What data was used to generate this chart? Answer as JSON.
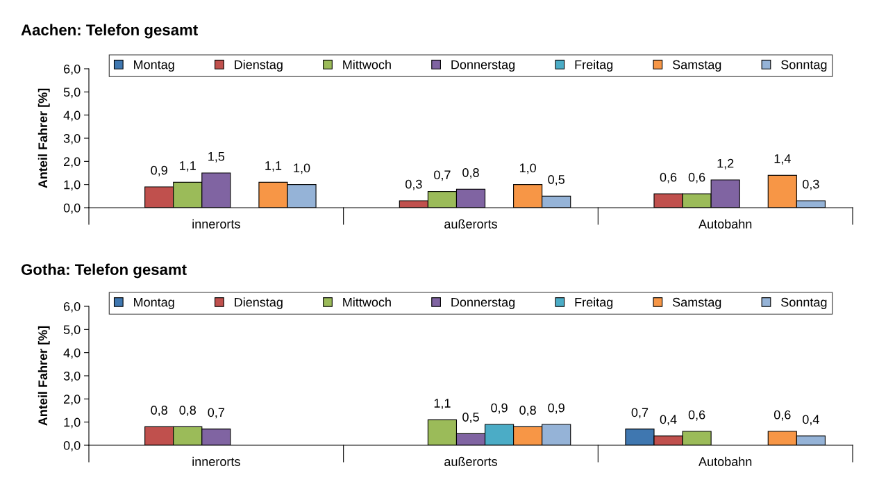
{
  "chart_data": [
    {
      "type": "bar",
      "title": "Aachen: Telefon gesamt",
      "ylabel": "Anteil Fahrer [%]",
      "categories": [
        "innerorts",
        "außerorts",
        "Autobahn"
      ],
      "ylim": [
        0,
        6
      ],
      "yticks": [
        {
          "value": 0,
          "label": "0,0"
        },
        {
          "value": 1,
          "label": "1,0"
        },
        {
          "value": 2,
          "label": "2,0"
        },
        {
          "value": 3,
          "label": "3,0"
        },
        {
          "value": 4,
          "label": "4,0"
        },
        {
          "value": 5,
          "label": "5,0"
        },
        {
          "value": 6,
          "label": "6,0"
        }
      ],
      "grid": false,
      "legend": "top",
      "series": [
        {
          "name": "Montag",
          "color": "#3f77b0",
          "values": [
            null,
            null,
            null
          ],
          "value_labels": [
            null,
            null,
            null
          ]
        },
        {
          "name": "Dienstag",
          "color": "#c0504d",
          "values": [
            0.9,
            0.3,
            0.6
          ],
          "value_labels": [
            "0,9",
            "0,3",
            "0,6"
          ]
        },
        {
          "name": "Mittwoch",
          "color": "#9bbb59",
          "values": [
            1.1,
            0.7,
            0.6
          ],
          "value_labels": [
            "1,1",
            "0,7",
            "0,6"
          ]
        },
        {
          "name": "Donnerstag",
          "color": "#8064a2",
          "values": [
            1.5,
            0.8,
            1.2
          ],
          "value_labels": [
            "1,5",
            "0,8",
            "1,2"
          ]
        },
        {
          "name": "Freitag",
          "color": "#4bacc6",
          "values": [
            null,
            null,
            null
          ],
          "value_labels": [
            null,
            null,
            null
          ]
        },
        {
          "name": "Samstag",
          "color": "#f79646",
          "values": [
            1.1,
            1.0,
            1.4
          ],
          "value_labels": [
            "1,1",
            "1,0",
            "1,4"
          ]
        },
        {
          "name": "Sonntag",
          "color": "#95b3d7",
          "values": [
            1.0,
            0.5,
            0.3
          ],
          "value_labels": [
            "1,0",
            "0,5",
            "0,3"
          ]
        }
      ]
    },
    {
      "type": "bar",
      "title": "Gotha: Telefon gesamt",
      "ylabel": "Anteil Fahrer [%]",
      "categories": [
        "innerorts",
        "außerorts",
        "Autobahn"
      ],
      "ylim": [
        0,
        6
      ],
      "yticks": [
        {
          "value": 0,
          "label": "0,0"
        },
        {
          "value": 1,
          "label": "1,0"
        },
        {
          "value": 2,
          "label": "2,0"
        },
        {
          "value": 3,
          "label": "3,0"
        },
        {
          "value": 4,
          "label": "4,0"
        },
        {
          "value": 5,
          "label": "5,0"
        },
        {
          "value": 6,
          "label": "6,0"
        }
      ],
      "grid": false,
      "legend": "top",
      "series": [
        {
          "name": "Montag",
          "color": "#3f77b0",
          "values": [
            null,
            null,
            0.7
          ],
          "value_labels": [
            null,
            null,
            "0,7"
          ]
        },
        {
          "name": "Dienstag",
          "color": "#c0504d",
          "values": [
            0.8,
            null,
            0.4
          ],
          "value_labels": [
            "0,8",
            null,
            "0,4"
          ]
        },
        {
          "name": "Mittwoch",
          "color": "#9bbb59",
          "values": [
            0.8,
            1.1,
            0.6
          ],
          "value_labels": [
            "0,8",
            "1,1",
            "0,6"
          ]
        },
        {
          "name": "Donnerstag",
          "color": "#8064a2",
          "values": [
            0.7,
            0.5,
            null
          ],
          "value_labels": [
            "0,7",
            "0,5",
            null
          ]
        },
        {
          "name": "Freitag",
          "color": "#4bacc6",
          "values": [
            null,
            0.9,
            null
          ],
          "value_labels": [
            null,
            "0,9",
            null
          ]
        },
        {
          "name": "Samstag",
          "color": "#f79646",
          "values": [
            null,
            0.8,
            0.6
          ],
          "value_labels": [
            null,
            "0,8",
            "0,6"
          ]
        },
        {
          "name": "Sonntag",
          "color": "#95b3d7",
          "values": [
            null,
            0.9,
            0.4
          ],
          "value_labels": [
            null,
            "0,9",
            "0,4"
          ]
        }
      ]
    }
  ]
}
